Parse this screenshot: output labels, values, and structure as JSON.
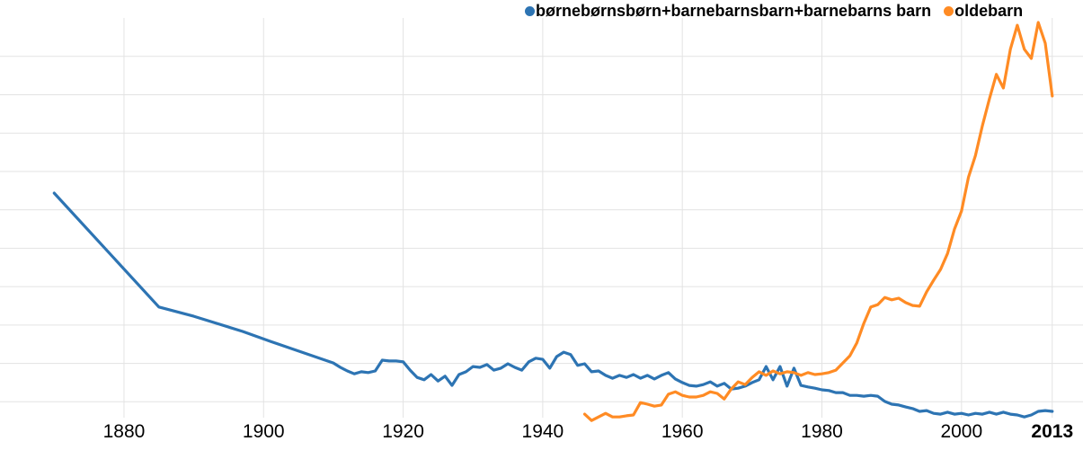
{
  "chart_data": {
    "type": "line",
    "title": "",
    "xlabel": "",
    "ylabel": "",
    "y_axis_note": "unlabeled axis; values are relative frequency as % of chart maximum",
    "ylim": [
      0,
      104
    ],
    "x_range": [
      1870,
      2013
    ],
    "grid": true,
    "legend_position": "top-center",
    "x_ticks": [
      {
        "label": "1880",
        "year": 1880,
        "bold": false
      },
      {
        "label": "1900",
        "year": 1900,
        "bold": false
      },
      {
        "label": "1920",
        "year": 1920,
        "bold": false
      },
      {
        "label": "1940",
        "year": 1940,
        "bold": false
      },
      {
        "label": "1960",
        "year": 1960,
        "bold": false
      },
      {
        "label": "1980",
        "year": 1980,
        "bold": false
      },
      {
        "label": "2000",
        "year": 2000,
        "bold": false
      },
      {
        "label": "2013",
        "year": 2013,
        "bold": true
      }
    ],
    "grid_color": "#e3e3e3",
    "series": [
      {
        "name": "børnebørnsbørn+barnebarnsbarn+barnebarns barn",
        "color": "#2d74b3",
        "points": [
          [
            1870,
            57.3
          ],
          [
            1885,
            28.8
          ],
          [
            1890,
            26.5
          ],
          [
            1897,
            22.7
          ],
          [
            1901,
            20.2
          ],
          [
            1904,
            18.4
          ],
          [
            1910,
            14.8
          ],
          [
            1911,
            13.7
          ],
          [
            1912,
            12.8
          ],
          [
            1913,
            12.1
          ],
          [
            1914,
            12.6
          ],
          [
            1915,
            12.4
          ],
          [
            1916,
            12.8
          ],
          [
            1917,
            15.5
          ],
          [
            1918,
            15.3
          ],
          [
            1919,
            15.3
          ],
          [
            1920,
            15.1
          ],
          [
            1921,
            13.0
          ],
          [
            1922,
            11.2
          ],
          [
            1923,
            10.6
          ],
          [
            1924,
            11.9
          ],
          [
            1925,
            10.3
          ],
          [
            1926,
            11.5
          ],
          [
            1927,
            9.2
          ],
          [
            1928,
            11.9
          ],
          [
            1929,
            12.6
          ],
          [
            1930,
            13.9
          ],
          [
            1931,
            13.7
          ],
          [
            1932,
            14.4
          ],
          [
            1933,
            13.0
          ],
          [
            1934,
            13.5
          ],
          [
            1935,
            14.6
          ],
          [
            1936,
            13.7
          ],
          [
            1937,
            13.0
          ],
          [
            1938,
            15.1
          ],
          [
            1939,
            16.0
          ],
          [
            1940,
            15.7
          ],
          [
            1941,
            13.5
          ],
          [
            1942,
            16.4
          ],
          [
            1943,
            17.5
          ],
          [
            1944,
            16.9
          ],
          [
            1945,
            14.2
          ],
          [
            1946,
            14.6
          ],
          [
            1947,
            12.6
          ],
          [
            1948,
            12.8
          ],
          [
            1949,
            11.7
          ],
          [
            1950,
            11.0
          ],
          [
            1951,
            11.7
          ],
          [
            1952,
            11.2
          ],
          [
            1953,
            11.9
          ],
          [
            1954,
            11.0
          ],
          [
            1955,
            11.7
          ],
          [
            1956,
            10.8
          ],
          [
            1957,
            11.7
          ],
          [
            1958,
            12.4
          ],
          [
            1959,
            10.8
          ],
          [
            1960,
            9.9
          ],
          [
            1961,
            9.2
          ],
          [
            1962,
            9.0
          ],
          [
            1963,
            9.4
          ],
          [
            1964,
            10.1
          ],
          [
            1965,
            9.0
          ],
          [
            1966,
            9.7
          ],
          [
            1967,
            8.3
          ],
          [
            1968,
            8.5
          ],
          [
            1969,
            9.0
          ],
          [
            1970,
            9.9
          ],
          [
            1971,
            10.6
          ],
          [
            1972,
            13.9
          ],
          [
            1973,
            10.6
          ],
          [
            1974,
            13.9
          ],
          [
            1975,
            9.0
          ],
          [
            1976,
            13.5
          ],
          [
            1977,
            9.2
          ],
          [
            1978,
            8.8
          ],
          [
            1979,
            8.5
          ],
          [
            1980,
            8.1
          ],
          [
            1981,
            7.9
          ],
          [
            1982,
            7.4
          ],
          [
            1983,
            7.4
          ],
          [
            1984,
            6.7
          ],
          [
            1985,
            6.7
          ],
          [
            1986,
            6.5
          ],
          [
            1987,
            6.7
          ],
          [
            1988,
            6.5
          ],
          [
            1989,
            5.2
          ],
          [
            1990,
            4.5
          ],
          [
            1991,
            4.3
          ],
          [
            1992,
            3.8
          ],
          [
            1993,
            3.4
          ],
          [
            1994,
            2.7
          ],
          [
            1995,
            2.9
          ],
          [
            1996,
            2.2
          ],
          [
            1997,
            2.0
          ],
          [
            1998,
            2.5
          ],
          [
            1999,
            2.0
          ],
          [
            2000,
            2.2
          ],
          [
            2001,
            1.8
          ],
          [
            2002,
            2.2
          ],
          [
            2003,
            2.0
          ],
          [
            2004,
            2.5
          ],
          [
            2005,
            2.0
          ],
          [
            2006,
            2.5
          ],
          [
            2007,
            2.0
          ],
          [
            2008,
            1.8
          ],
          [
            2009,
            1.3
          ],
          [
            2010,
            1.8
          ],
          [
            2011,
            2.7
          ],
          [
            2012,
            2.9
          ],
          [
            2013,
            2.7
          ]
        ]
      },
      {
        "name": "oldebarn",
        "color": "#ff8b24",
        "points": [
          [
            1946,
            2.0
          ],
          [
            1947,
            0.4
          ],
          [
            1948,
            1.3
          ],
          [
            1949,
            2.2
          ],
          [
            1950,
            1.3
          ],
          [
            1951,
            1.3
          ],
          [
            1952,
            1.6
          ],
          [
            1953,
            1.8
          ],
          [
            1954,
            4.9
          ],
          [
            1955,
            4.5
          ],
          [
            1956,
            4.0
          ],
          [
            1957,
            4.3
          ],
          [
            1958,
            7.0
          ],
          [
            1959,
            7.6
          ],
          [
            1960,
            6.7
          ],
          [
            1961,
            6.3
          ],
          [
            1962,
            6.3
          ],
          [
            1963,
            6.7
          ],
          [
            1964,
            7.6
          ],
          [
            1965,
            7.2
          ],
          [
            1966,
            5.8
          ],
          [
            1967,
            8.3
          ],
          [
            1968,
            10.1
          ],
          [
            1969,
            9.4
          ],
          [
            1970,
            11.2
          ],
          [
            1971,
            12.6
          ],
          [
            1972,
            11.7
          ],
          [
            1973,
            12.8
          ],
          [
            1974,
            12.1
          ],
          [
            1975,
            12.6
          ],
          [
            1976,
            12.4
          ],
          [
            1977,
            11.7
          ],
          [
            1978,
            12.4
          ],
          [
            1979,
            11.9
          ],
          [
            1980,
            12.1
          ],
          [
            1981,
            12.4
          ],
          [
            1982,
            13.0
          ],
          [
            1983,
            14.8
          ],
          [
            1984,
            16.6
          ],
          [
            1985,
            19.8
          ],
          [
            1986,
            24.7
          ],
          [
            1987,
            28.8
          ],
          [
            1988,
            29.4
          ],
          [
            1989,
            31.2
          ],
          [
            1990,
            30.6
          ],
          [
            1991,
            31.0
          ],
          [
            1992,
            29.9
          ],
          [
            1993,
            29.2
          ],
          [
            1994,
            29.0
          ],
          [
            1995,
            32.6
          ],
          [
            1996,
            35.5
          ],
          [
            1997,
            38.2
          ],
          [
            1998,
            42.2
          ],
          [
            1999,
            48.3
          ],
          [
            2000,
            52.8
          ],
          [
            2001,
            61.3
          ],
          [
            2002,
            66.7
          ],
          [
            2003,
            74.2
          ],
          [
            2004,
            80.9
          ],
          [
            2005,
            87.0
          ],
          [
            2006,
            83.6
          ],
          [
            2007,
            93.3
          ],
          [
            2008,
            99.3
          ],
          [
            2009,
            93.3
          ],
          [
            2010,
            91.0
          ],
          [
            2011,
            100.0
          ],
          [
            2012,
            94.8
          ],
          [
            2013,
            81.6
          ]
        ]
      }
    ]
  }
}
